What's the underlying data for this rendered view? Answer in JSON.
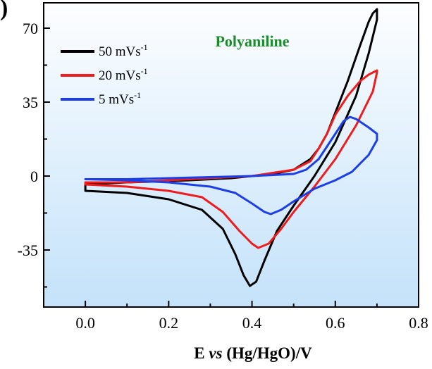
{
  "chart_data": {
    "type": "line",
    "panel_label": ")",
    "title": "Polyaniline",
    "title_color": "#1e8a2e",
    "xlabel": {
      "main": "E ",
      "italic": "vs",
      "rest": " (Hg/HgO)/V"
    },
    "ylabel": "",
    "xlim": [
      -0.1,
      0.8
    ],
    "ylim": [
      -62,
      82
    ],
    "xticks": [
      0.0,
      0.2,
      0.4,
      0.6,
      0.8
    ],
    "xtick_labels": [
      "0.0",
      "0.2",
      "0.4",
      "0.6",
      "0.8"
    ],
    "yticks": [
      -35,
      0,
      35,
      70
    ],
    "ytick_labels": [
      "-35",
      "0",
      "35",
      "70"
    ],
    "background_gradient": [
      "#fdfeff",
      "#c4e2fa"
    ],
    "grid": false,
    "legend_position": "top-left",
    "series": [
      {
        "name": "50 mVs",
        "name_sup": "-1",
        "color": "#000000",
        "points": [
          [
            0.0,
            -7
          ],
          [
            0.1,
            -8
          ],
          [
            0.2,
            -11
          ],
          [
            0.28,
            -16
          ],
          [
            0.33,
            -25
          ],
          [
            0.36,
            -37
          ],
          [
            0.38,
            -47
          ],
          [
            0.395,
            -52
          ],
          [
            0.41,
            -50
          ],
          [
            0.43,
            -40
          ],
          [
            0.46,
            -26
          ],
          [
            0.5,
            -14
          ],
          [
            0.55,
            0
          ],
          [
            0.6,
            16
          ],
          [
            0.65,
            38
          ],
          [
            0.68,
            58
          ],
          [
            0.7,
            74
          ],
          [
            0.7,
            79
          ],
          [
            0.69,
            77
          ],
          [
            0.68,
            73
          ],
          [
            0.66,
            62
          ],
          [
            0.63,
            45
          ],
          [
            0.6,
            30
          ],
          [
            0.58,
            20
          ],
          [
            0.56,
            13
          ],
          [
            0.54,
            8
          ],
          [
            0.5,
            3
          ],
          [
            0.45,
            1
          ],
          [
            0.35,
            -1
          ],
          [
            0.25,
            -2
          ],
          [
            0.1,
            -3
          ],
          [
            0.0,
            -4
          ]
        ]
      },
      {
        "name": "20 mVs",
        "name_sup": "-1",
        "color": "#ee1c1c",
        "points": [
          [
            0.0,
            -4
          ],
          [
            0.1,
            -5
          ],
          [
            0.2,
            -7
          ],
          [
            0.28,
            -10
          ],
          [
            0.33,
            -17
          ],
          [
            0.37,
            -26
          ],
          [
            0.4,
            -32
          ],
          [
            0.415,
            -34
          ],
          [
            0.44,
            -32
          ],
          [
            0.47,
            -25
          ],
          [
            0.5,
            -17
          ],
          [
            0.55,
            -5
          ],
          [
            0.6,
            8
          ],
          [
            0.65,
            24
          ],
          [
            0.69,
            40
          ],
          [
            0.7,
            49
          ],
          [
            0.7,
            50
          ],
          [
            0.68,
            48
          ],
          [
            0.66,
            45
          ],
          [
            0.63,
            38
          ],
          [
            0.6,
            29
          ],
          [
            0.58,
            20
          ],
          [
            0.56,
            13
          ],
          [
            0.54,
            7
          ],
          [
            0.5,
            3
          ],
          [
            0.4,
            0
          ],
          [
            0.3,
            -1
          ],
          [
            0.2,
            -2
          ],
          [
            0.1,
            -3
          ],
          [
            0.0,
            -3
          ]
        ]
      },
      {
        "name": "5 mVs",
        "name_sup": "-1",
        "color": "#1c3ee8",
        "points": [
          [
            0.0,
            -1.5
          ],
          [
            0.1,
            -2
          ],
          [
            0.2,
            -3
          ],
          [
            0.3,
            -5
          ],
          [
            0.36,
            -8
          ],
          [
            0.4,
            -13
          ],
          [
            0.43,
            -17
          ],
          [
            0.445,
            -18
          ],
          [
            0.47,
            -16
          ],
          [
            0.5,
            -12
          ],
          [
            0.55,
            -6
          ],
          [
            0.6,
            -2
          ],
          [
            0.64,
            2
          ],
          [
            0.68,
            10
          ],
          [
            0.7,
            17
          ],
          [
            0.7,
            20
          ],
          [
            0.68,
            23
          ],
          [
            0.65,
            27
          ],
          [
            0.635,
            28
          ],
          [
            0.62,
            26
          ],
          [
            0.6,
            20
          ],
          [
            0.58,
            14
          ],
          [
            0.56,
            8
          ],
          [
            0.53,
            3
          ],
          [
            0.5,
            1
          ],
          [
            0.4,
            0
          ],
          [
            0.3,
            -0.5
          ],
          [
            0.2,
            -1
          ],
          [
            0.1,
            -1.5
          ],
          [
            0.0,
            -1.5
          ]
        ]
      }
    ]
  }
}
